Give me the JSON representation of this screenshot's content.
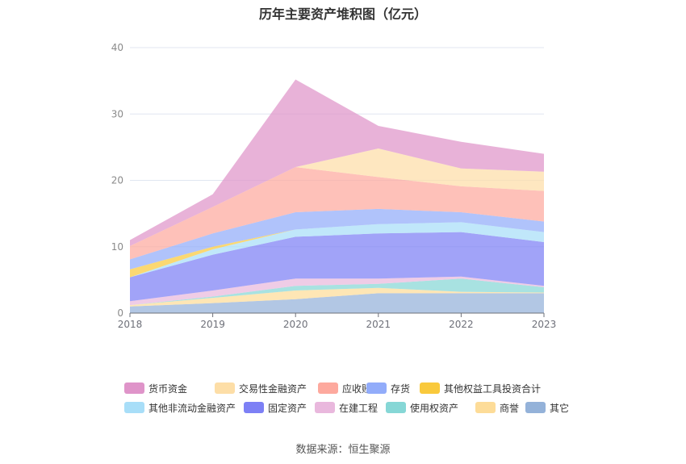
{
  "title": "历年主要资产堆积图（亿元）",
  "source": "数据来源：恒生聚源",
  "chart_data": {
    "type": "area",
    "stacked": true,
    "title": "历年主要资产堆积图（亿元）",
    "x": [
      "2018",
      "2019",
      "2020",
      "2021",
      "2022",
      "2023"
    ],
    "ylim": [
      0,
      40
    ],
    "yticks": [
      0,
      10,
      20,
      30,
      40
    ],
    "grid": true,
    "legend_position": "bottom",
    "series": [
      {
        "name": "其它",
        "color": "#94b2d9",
        "values": [
          1.0,
          1.5,
          2.1,
          3.0,
          3.0,
          3.0
        ]
      },
      {
        "name": "商誉",
        "color": "#fddc98",
        "values": [
          0.2,
          0.8,
          1.3,
          0.8,
          0.2,
          0.1
        ]
      },
      {
        "name": "使用权资产",
        "color": "#86d7d6",
        "values": [
          0.0,
          0.2,
          0.7,
          0.6,
          2.0,
          0.8
        ]
      },
      {
        "name": "在建工程",
        "color": "#e9b8dd",
        "values": [
          0.6,
          0.9,
          1.1,
          0.8,
          0.3,
          0.2
        ]
      },
      {
        "name": "固定资产",
        "color": "#7d80f5",
        "values": [
          3.6,
          5.4,
          6.3,
          6.8,
          6.7,
          6.6
        ]
      },
      {
        "name": "其他非流动金融资产",
        "color": "#a8def8",
        "values": [
          0.0,
          0.8,
          1.1,
          1.4,
          1.5,
          1.5
        ]
      },
      {
        "name": "其他权益工具投资合计",
        "color": "#f9c93c",
        "values": [
          1.2,
          0.4,
          0.0,
          0.0,
          0.0,
          0.0
        ]
      },
      {
        "name": "存货",
        "color": "#92acfa",
        "values": [
          1.5,
          2.0,
          2.6,
          2.3,
          1.5,
          1.6
        ]
      },
      {
        "name": "应收账款",
        "color": "#fda99e",
        "values": [
          2.0,
          4.0,
          6.8,
          4.8,
          3.9,
          4.6
        ]
      },
      {
        "name": "交易性金融资产",
        "color": "#fddea7",
        "values": [
          0.0,
          0.0,
          0.0,
          4.3,
          2.7,
          2.9
        ]
      },
      {
        "name": "货币资金",
        "color": "#df94c9",
        "values": [
          0.9,
          1.9,
          13.2,
          3.4,
          4.0,
          2.7
        ]
      }
    ],
    "legend_order": [
      "货币资金",
      "交易性金融资产",
      "应收账款",
      "存货",
      "其他权益工具投资合计",
      "其他非流动金融资产",
      "固定资产",
      "在建工程",
      "使用权资产",
      "商誉",
      "其它"
    ]
  }
}
